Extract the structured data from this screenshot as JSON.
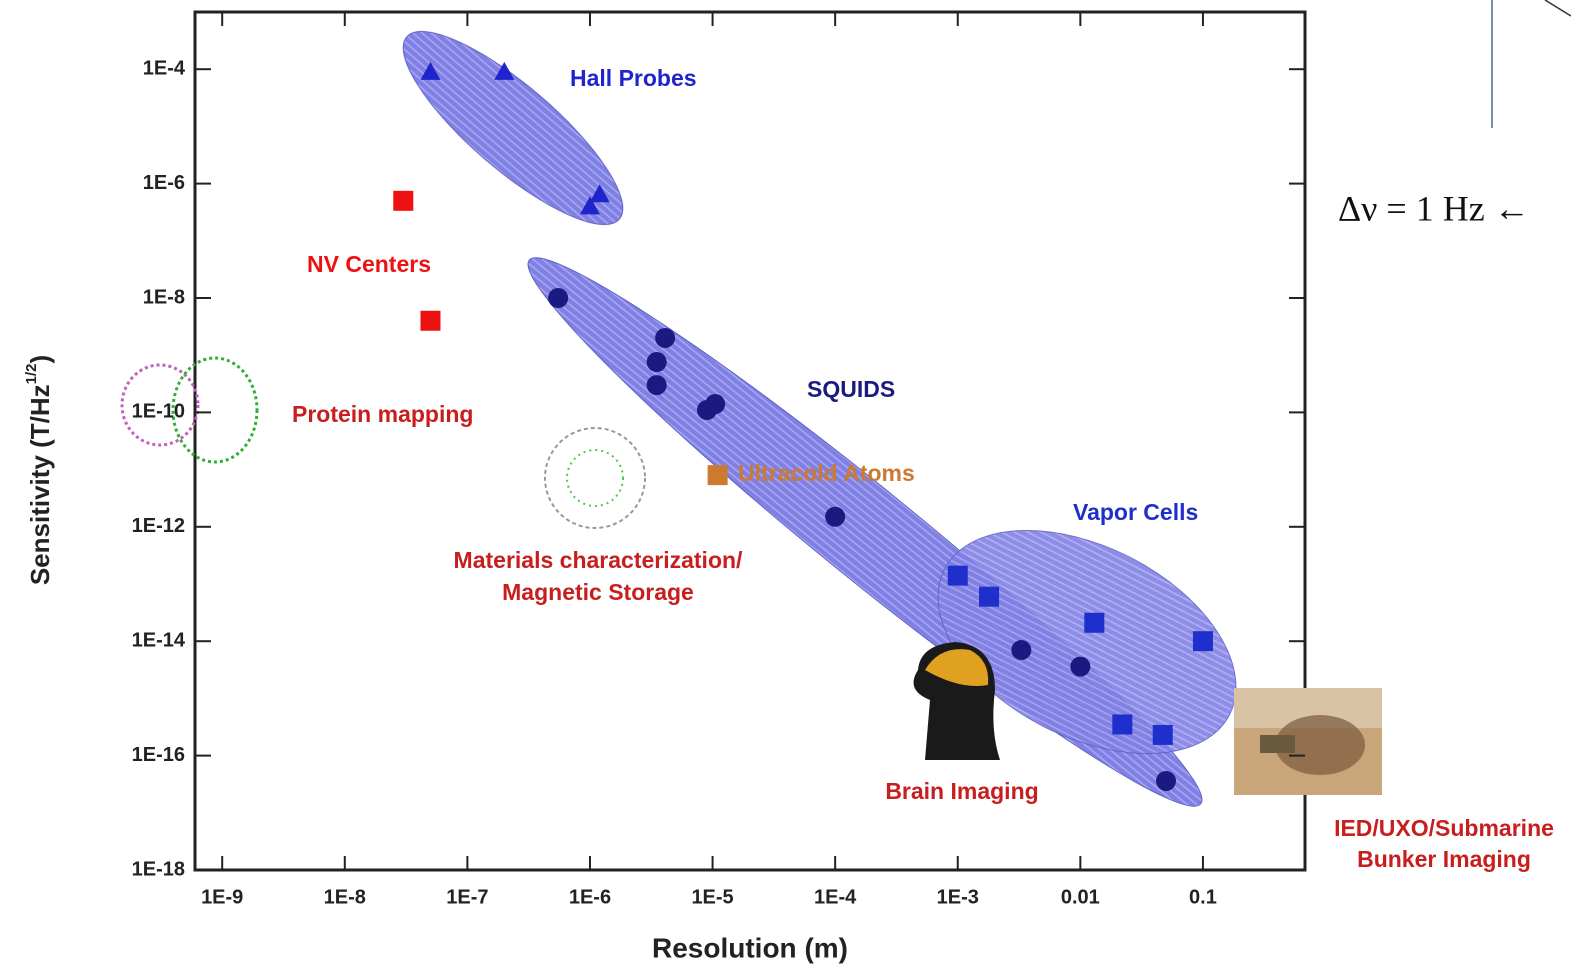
{
  "chart_data": {
    "type": "scatter",
    "xlabel": "Resolution (m)",
    "ylabel": {
      "text": "Sensitivity (T/Hz",
      "sup": "1/2",
      "end": ")"
    },
    "log_x": true,
    "log_y": true,
    "xlim": [
      6e-10,
      0.68
    ],
    "ylim": [
      1e-18,
      0.001
    ],
    "xticks": [
      {
        "value": 1e-09,
        "label": "1E-9"
      },
      {
        "value": 1e-08,
        "label": "1E-8"
      },
      {
        "value": 1e-07,
        "label": "1E-7"
      },
      {
        "value": 1e-06,
        "label": "1E-6"
      },
      {
        "value": 1e-05,
        "label": "1E-5"
      },
      {
        "value": 0.0001,
        "label": "1E-4"
      },
      {
        "value": 0.001,
        "label": "1E-3"
      },
      0.01,
      0.1
    ],
    "yticks": [
      {
        "value": 0.0001,
        "label": "1E-4"
      },
      {
        "value": 1e-06,
        "label": "1E-6"
      },
      {
        "value": 1e-08,
        "label": "1E-8"
      },
      {
        "value": 1e-10,
        "label": "1E-10"
      },
      {
        "value": 1e-12,
        "label": "1E-12"
      },
      {
        "value": 1e-14,
        "label": "1E-14"
      },
      {
        "value": 1e-16,
        "label": "1E-16"
      },
      {
        "value": 1e-18,
        "label": "1E-18"
      }
    ],
    "series": [
      {
        "name": "Hall Probes",
        "color": "#1f24cc",
        "marker": "triangle",
        "x": [
          5e-08,
          2e-07,
          1.2e-06,
          1e-06
        ],
        "values": [
          9e-05,
          9e-05,
          6.5e-07,
          4e-07
        ]
      },
      {
        "name": "NV Centers",
        "color": "#ee1111",
        "marker": "square",
        "x": [
          3e-08,
          5e-08
        ],
        "values": [
          5e-07,
          4e-09
        ]
      },
      {
        "name": "SQUIDS",
        "color": "#1a1a80",
        "marker": "circle",
        "x": [
          5.5e-07,
          4.1e-06,
          3.5e-06,
          3.5e-06,
          9e-06,
          1.05e-05,
          0.0001,
          0.0033,
          0.01,
          0.05
        ],
        "values": [
          1e-08,
          2e-09,
          7.6e-10,
          3e-10,
          1.1e-10,
          1.4e-10,
          1.5e-12,
          7e-15,
          3.6e-15,
          3.6e-17
        ]
      },
      {
        "name": "Ultracold Atoms",
        "color": "#cc7a30",
        "marker": "square",
        "x": [
          1.1e-05
        ],
        "values": [
          8e-12
        ]
      },
      {
        "name": "Vapor Cells",
        "color": "#1f2fcc",
        "marker": "square",
        "x": [
          0.001,
          0.0018,
          0.013,
          0.1,
          0.022,
          0.047
        ],
        "values": [
          1.4e-13,
          6e-14,
          2.1e-14,
          1e-14,
          3.5e-16,
          2.3e-16
        ]
      }
    ],
    "annotations": [
      "Protein mapping",
      "Materials characterization/",
      "Magnetic Storage",
      "Brain Imaging",
      "IED/UXO/Submarine",
      "Bunker Imaging",
      "Δν = 1 Hz ←"
    ]
  }
}
